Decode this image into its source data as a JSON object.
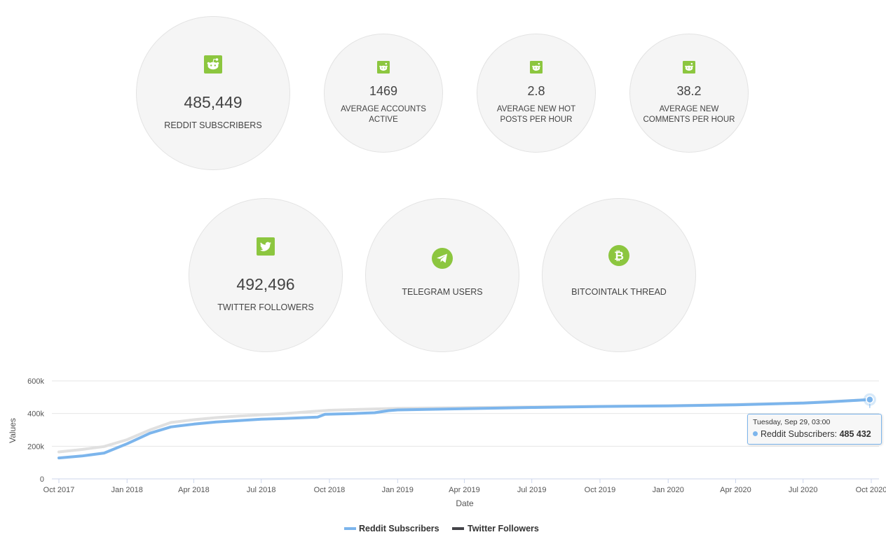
{
  "stats": {
    "reddit_subscribers": {
      "value": "485,449",
      "label": "REDDIT SUBSCRIBERS",
      "icon": "reddit-icon"
    },
    "accounts_active": {
      "value": "1469",
      "label_line1": "AVERAGE ACCOUNTS",
      "label_line2": "ACTIVE",
      "icon": "reddit-icon"
    },
    "hot_posts": {
      "value": "2.8",
      "label_line1": "AVERAGE NEW HOT",
      "label_line2": "POSTS PER HOUR",
      "icon": "reddit-icon"
    },
    "comments": {
      "value": "38.2",
      "label_line1": "AVERAGE NEW",
      "label_line2": "COMMENTS PER HOUR",
      "icon": "reddit-icon"
    },
    "twitter_followers": {
      "value": "492,496",
      "label": "TWITTER FOLLOWERS",
      "icon": "twitter-icon"
    },
    "telegram": {
      "label": "TELEGRAM USERS",
      "icon": "telegram-icon"
    },
    "bitcointalk": {
      "label": "BITCOINTALK THREAD",
      "icon": "bitcoin-icon"
    }
  },
  "colors": {
    "icon_green": "#8cc63f",
    "reddit_series": "#7cb5ec",
    "twitter_series": "#434348",
    "twitter_line_faded": "#e0e0e0"
  },
  "chart_data": {
    "type": "line",
    "xlabel": "Date",
    "ylabel": "Values",
    "ylim": [
      0,
      600000
    ],
    "y_ticks": [
      0,
      200000,
      400000,
      600000
    ],
    "y_tick_labels": [
      "0",
      "200k",
      "400k",
      "600k"
    ],
    "x_ticks": [
      "2017-10-01",
      "2018-01-01",
      "2018-04-01",
      "2018-07-01",
      "2018-10-01",
      "2019-01-01",
      "2019-04-01",
      "2019-07-01",
      "2019-10-01",
      "2020-01-01",
      "2020-04-01",
      "2020-07-01",
      "2020-10-01"
    ],
    "x_tick_labels": [
      "Oct 2017",
      "Jan 2018",
      "Apr 2018",
      "Jul 2018",
      "Oct 2018",
      "Jan 2019",
      "Apr 2019",
      "Jul 2019",
      "Oct 2019",
      "Jan 2020",
      "Apr 2020",
      "Jul 2020",
      "Oct 2020"
    ],
    "grid": true,
    "legend_position": "bottom-center",
    "series": [
      {
        "name": "Reddit Subscribers",
        "color": "#7cb5ec",
        "points": [
          [
            "2017-10-01",
            128000
          ],
          [
            "2017-11-01",
            140000
          ],
          [
            "2017-12-01",
            158000
          ],
          [
            "2018-01-01",
            215000
          ],
          [
            "2018-02-01",
            280000
          ],
          [
            "2018-03-01",
            318000
          ],
          [
            "2018-04-01",
            335000
          ],
          [
            "2018-05-01",
            348000
          ],
          [
            "2018-06-01",
            357000
          ],
          [
            "2018-07-01",
            365000
          ],
          [
            "2018-08-01",
            370000
          ],
          [
            "2018-09-15",
            378000
          ],
          [
            "2018-09-25",
            395000
          ],
          [
            "2018-11-01",
            400000
          ],
          [
            "2018-12-01",
            405000
          ],
          [
            "2018-12-20",
            418000
          ],
          [
            "2019-01-01",
            422000
          ],
          [
            "2019-04-01",
            430000
          ],
          [
            "2019-07-01",
            437000
          ],
          [
            "2019-10-01",
            443000
          ],
          [
            "2020-01-01",
            447000
          ],
          [
            "2020-04-01",
            453000
          ],
          [
            "2020-07-01",
            464000
          ],
          [
            "2020-08-01",
            470000
          ],
          [
            "2020-09-29",
            485432
          ]
        ]
      },
      {
        "name": "Twitter Followers",
        "color": "#434348",
        "points": [
          [
            "2017-10-01",
            165000
          ],
          [
            "2017-11-01",
            180000
          ],
          [
            "2017-12-01",
            198000
          ],
          [
            "2018-01-01",
            240000
          ],
          [
            "2018-02-01",
            300000
          ],
          [
            "2018-03-01",
            345000
          ],
          [
            "2018-04-01",
            362000
          ],
          [
            "2018-05-01",
            375000
          ],
          [
            "2018-06-01",
            385000
          ],
          [
            "2018-07-01",
            392000
          ],
          [
            "2018-08-01",
            400000
          ],
          [
            "2018-09-01",
            410000
          ],
          [
            "2018-10-01",
            420000
          ],
          [
            "2018-12-01",
            428000
          ],
          [
            "2019-01-01",
            432000
          ],
          [
            "2019-04-01",
            436000
          ],
          [
            "2019-07-01",
            440000
          ],
          [
            "2019-10-01",
            444000
          ],
          [
            "2020-01-01",
            448000
          ],
          [
            "2020-04-01",
            455000
          ],
          [
            "2020-07-01",
            465000
          ],
          [
            "2020-09-29",
            485000
          ]
        ]
      }
    ],
    "tooltip": {
      "date": "Tuesday, Sep 29, 03:00",
      "series": "Reddit Subscribers",
      "value": "485 432"
    }
  },
  "legend": {
    "reddit": "Reddit Subscribers",
    "twitter": "Twitter Followers"
  }
}
